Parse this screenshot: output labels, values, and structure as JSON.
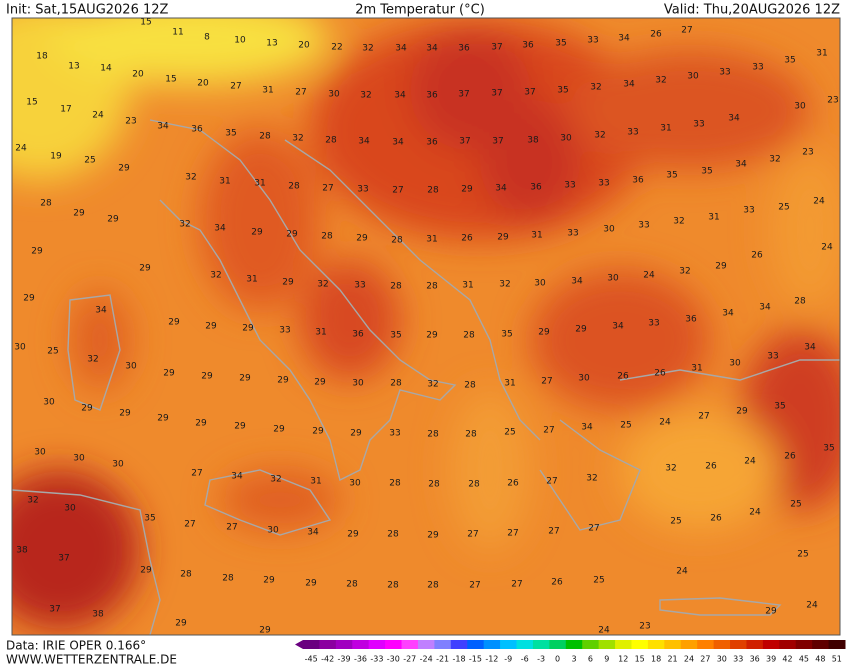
{
  "header": {
    "init": "Init: Sat,15AUG2026 12Z",
    "title": "2m Temperatur (°C)",
    "valid": "Valid: Thu,20AUG2026 12Z"
  },
  "footer": {
    "data": "Data: IRIE OPER 0.166°",
    "site": "WWW.WETTERZENTRALE.DE"
  },
  "map": {
    "temperature_labels": [
      15,
      11,
      8,
      10,
      13,
      20,
      22,
      32,
      34,
      34,
      36,
      37,
      36,
      35,
      33,
      34,
      26,
      27,
      18,
      31,
      13,
      14,
      20,
      15,
      20,
      27,
      31,
      27,
      30,
      32,
      34,
      36,
      37,
      37,
      37,
      35,
      32,
      34,
      32,
      30,
      33,
      33,
      35,
      23,
      15,
      17,
      24,
      23,
      34,
      36,
      35,
      28,
      32,
      28,
      34,
      34,
      36,
      37,
      37,
      38,
      30,
      32,
      33,
      31,
      33,
      34,
      30,
      24,
      19,
      25,
      29,
      32,
      31,
      31,
      28,
      27,
      33,
      27,
      28,
      29,
      34,
      36,
      33,
      33,
      36,
      35,
      35,
      34,
      32,
      23,
      28,
      29,
      29,
      32,
      34,
      29,
      29,
      28,
      29,
      28,
      31,
      26,
      29,
      31,
      33,
      30,
      33,
      32,
      31,
      33,
      25,
      24,
      29,
      29,
      32,
      31,
      29,
      32,
      33,
      28,
      28,
      31,
      32,
      30,
      34,
      30,
      24,
      32,
      29,
      26,
      24,
      29,
      34,
      29,
      29,
      29,
      33,
      31,
      36,
      35,
      29,
      28,
      35,
      29,
      29,
      34,
      33,
      36,
      34,
      34,
      28,
      30,
      25,
      32,
      30,
      29,
      29,
      29,
      29,
      29,
      30,
      28,
      32,
      28,
      31,
      27,
      30,
      26,
      26,
      31,
      30,
      33,
      34,
      30,
      29,
      29,
      29,
      29,
      29,
      29,
      29,
      29,
      33,
      28,
      28,
      25,
      27,
      34,
      25,
      24,
      27,
      29,
      35,
      30,
      30,
      30,
      27,
      34,
      32,
      31,
      30,
      28,
      28,
      28,
      26,
      27,
      32,
      32,
      26,
      24,
      26,
      35,
      32,
      30,
      35,
      27,
      27,
      30,
      34,
      29,
      28,
      29,
      27,
      27,
      27,
      27,
      25,
      26,
      24,
      25,
      38,
      37,
      29,
      28,
      28,
      29,
      29,
      28,
      28,
      28,
      27,
      27,
      26,
      25,
      24,
      25,
      37,
      38,
      29,
      29,
      24,
      23,
      29,
      24
    ]
  },
  "colorbar": {
    "ticks": [
      -45,
      -42,
      -39,
      -36,
      -33,
      -30,
      -27,
      -24,
      -21,
      -18,
      -15,
      -12,
      -9,
      -6,
      -3,
      0,
      3,
      6,
      9,
      12,
      15,
      18,
      21,
      24,
      27,
      30,
      33,
      36,
      39,
      42,
      45,
      48,
      51
    ],
    "colors": [
      "#6a0080",
      "#8b00a0",
      "#a000c0",
      "#c000e0",
      "#e000ff",
      "#ff00ff",
      "#ff40ff",
      "#c080ff",
      "#8080ff",
      "#4040ff",
      "#0060ff",
      "#0090ff",
      "#00c0ff",
      "#00e0e0",
      "#00e0a0",
      "#00d060",
      "#00c000",
      "#60d000",
      "#a0e000",
      "#e0f000",
      "#ffff00",
      "#ffe000",
      "#ffc000",
      "#ffa000",
      "#ff8000",
      "#f06000",
      "#e04000",
      "#d02000",
      "#c00000",
      "#a00000",
      "#800000",
      "#600000",
      "#400000"
    ]
  }
}
